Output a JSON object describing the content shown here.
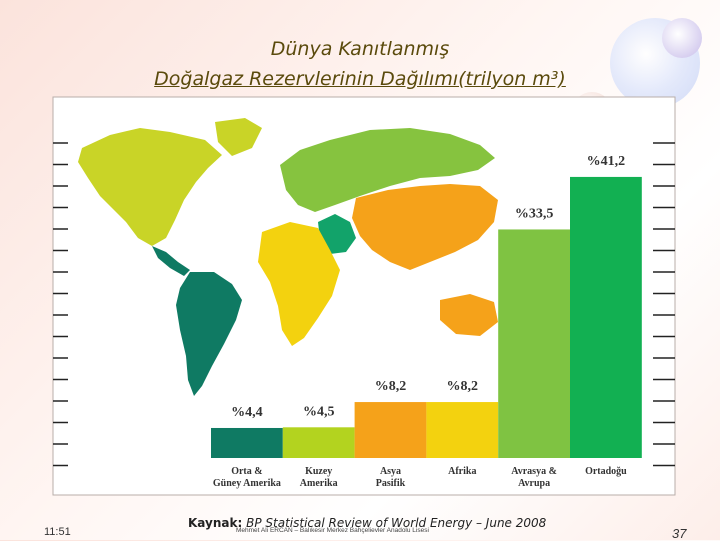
{
  "title": {
    "line1": "Dünya Kanıtlanmış",
    "line2": "Doğalgaz Rezervlerinin Dağılımı(trilyon m³)"
  },
  "chart_data": {
    "type": "bar",
    "categories": [
      "Orta & Güney Amerika",
      "Kuzey Amerika",
      "Asya Pasifik",
      "Afrika",
      "Avrasya & Avrupa",
      "Ortadoğu"
    ],
    "values": [
      4.4,
      4.5,
      8.2,
      8.2,
      33.5,
      41.2
    ],
    "labels": [
      "%4,4",
      "%4,5",
      "%8,2",
      "%8,2",
      "%33,5",
      "%41,2"
    ],
    "colors": [
      "#0f7a63",
      "#b3d31f",
      "#f5a21a",
      "#f3d20f",
      "#7fc342",
      "#12b052"
    ],
    "ylim": [
      0,
      45
    ]
  },
  "footer": {
    "time": "11:51",
    "source_prefix": "Kaynak:",
    "source": "BP Statistical Review of World Energy – June 2008",
    "author": "Mehmet Ali ERCAN – Balıkesir Merkez Bahçelievler Anadolu Lisesi",
    "page": "37"
  }
}
